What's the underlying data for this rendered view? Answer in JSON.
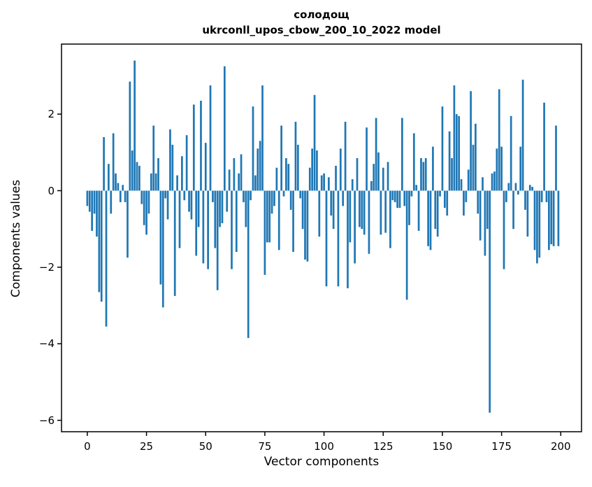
{
  "chart_data": {
    "type": "bar",
    "title_line1": "солодощ",
    "title_line2": "ukrconll_upos_cbow_200_10_2022 model",
    "xlabel": "Vector components",
    "ylabel": "Components values",
    "xticks": [
      0,
      25,
      50,
      75,
      100,
      125,
      150,
      175,
      200
    ],
    "yticks": [
      2,
      0,
      -2,
      -4,
      -6
    ],
    "xlim": [
      -10.9,
      208.8
    ],
    "ylim": [
      -6.3,
      3.83
    ],
    "grid": false,
    "legend": "none",
    "bar_color": "#1f77b4",
    "n_components": 200,
    "values": [
      -0.4,
      -0.55,
      -1.05,
      -0.6,
      -1.2,
      -2.65,
      -2.9,
      1.4,
      -3.55,
      0.7,
      -0.6,
      1.5,
      0.45,
      0.2,
      -0.3,
      0.15,
      -0.3,
      -1.75,
      2.85,
      1.05,
      3.4,
      0.75,
      0.65,
      -0.35,
      -0.9,
      -1.15,
      -0.6,
      0.45,
      1.7,
      0.45,
      0.85,
      -2.45,
      -3.05,
      -0.2,
      -0.75,
      1.6,
      1.2,
      -2.75,
      0.4,
      -1.5,
      0.9,
      -0.25,
      1.45,
      -0.55,
      -0.75,
      2.25,
      -1.7,
      -0.95,
      2.35,
      -1.9,
      1.25,
      -2.05,
      2.75,
      -0.3,
      -1.5,
      -2.6,
      -0.95,
      -0.85,
      3.25,
      -0.55,
      0.55,
      -2.05,
      0.85,
      -1.6,
      0.45,
      0.95,
      -0.3,
      -0.95,
      -3.85,
      -0.25,
      2.2,
      0.4,
      1.1,
      1.3,
      2.75,
      -2.2,
      -1.35,
      -1.35,
      -0.6,
      -0.4,
      0.6,
      -1.55,
      1.7,
      -0.15,
      0.85,
      0.7,
      -0.5,
      -1.6,
      1.8,
      1.2,
      -0.2,
      -1.0,
      -1.8,
      -1.85,
      0.6,
      1.1,
      2.5,
      1.05,
      -1.2,
      0.4,
      0.45,
      -2.5,
      0.35,
      -0.65,
      -1.0,
      0.65,
      -2.5,
      1.1,
      -0.4,
      1.8,
      -2.55,
      -1.35,
      0.3,
      -1.9,
      0.85,
      -0.95,
      -1.0,
      -1.15,
      1.65,
      -1.65,
      0.25,
      0.7,
      1.9,
      1.0,
      -1.15,
      0.6,
      -1.1,
      0.75,
      -1.5,
      -0.25,
      -0.3,
      -0.45,
      -0.45,
      1.9,
      -0.4,
      -2.85,
      -0.9,
      -0.15,
      1.5,
      0.15,
      -1.05,
      0.85,
      0.75,
      0.85,
      -1.45,
      -1.55,
      1.15,
      -1.0,
      -1.2,
      -0.15,
      2.2,
      -0.45,
      -0.65,
      1.55,
      0.85,
      2.75,
      2.0,
      1.95,
      0.3,
      -0.65,
      -0.3,
      0.55,
      2.6,
      1.2,
      1.75,
      -0.6,
      -1.3,
      0.35,
      -1.7,
      -1.0,
      -5.8,
      0.45,
      0.5,
      1.1,
      2.65,
      1.15,
      -2.05,
      -0.3,
      0.2,
      1.95,
      -1.0,
      0.2,
      -0.1,
      1.15,
      2.9,
      -0.5,
      -1.2,
      0.15,
      0.1,
      -1.55,
      -1.9,
      -1.75,
      -0.3,
      2.3,
      -0.3,
      -1.55,
      -1.4,
      -1.45,
      1.7,
      -1.45
    ]
  }
}
